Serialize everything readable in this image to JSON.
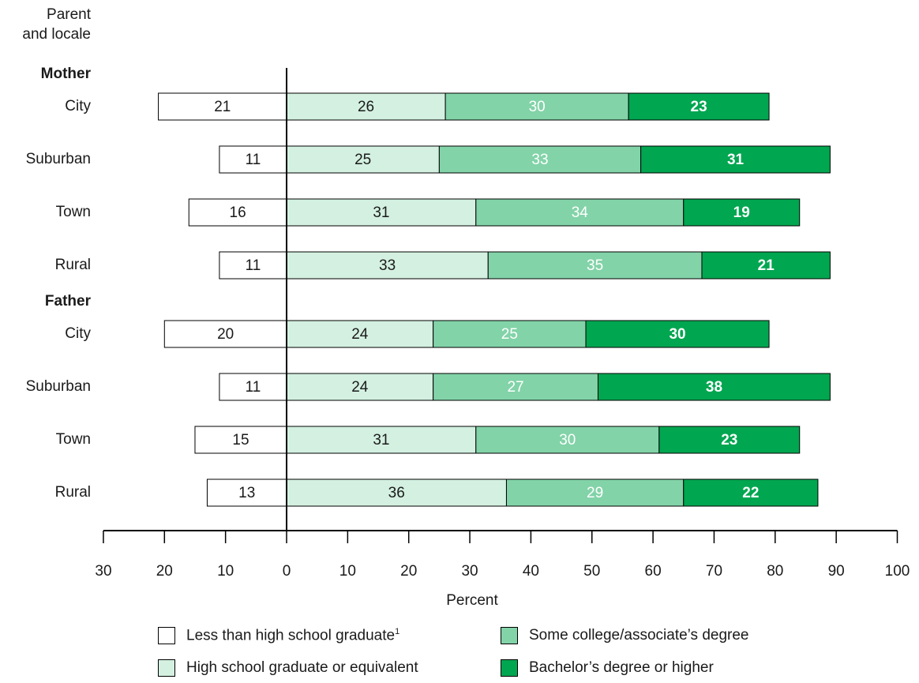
{
  "chart_data": {
    "type": "bar",
    "orientation": "horizontal-diverging",
    "y_axis_title_line1": "Parent",
    "y_axis_title_line2": "and locale",
    "xlabel": "Percent",
    "xlim": [
      -30,
      100
    ],
    "x_ticks": [
      -30,
      -20,
      -10,
      0,
      10,
      20,
      30,
      40,
      50,
      60,
      70,
      80,
      90,
      100
    ],
    "x_tick_labels": [
      "30",
      "20",
      "10",
      "0",
      "10",
      "20",
      "30",
      "40",
      "50",
      "60",
      "70",
      "80",
      "90",
      "100"
    ],
    "groups": [
      {
        "name": "Mother",
        "rows": [
          {
            "label": "City",
            "values": [
              21,
              26,
              30,
              23
            ]
          },
          {
            "label": "Suburban",
            "values": [
              11,
              25,
              33,
              31
            ]
          },
          {
            "label": "Town",
            "values": [
              16,
              31,
              34,
              19
            ]
          },
          {
            "label": "Rural",
            "values": [
              11,
              33,
              35,
              21
            ]
          }
        ]
      },
      {
        "name": "Father",
        "rows": [
          {
            "label": "City",
            "values": [
              20,
              24,
              25,
              30
            ]
          },
          {
            "label": "Suburban",
            "values": [
              11,
              24,
              27,
              38
            ]
          },
          {
            "label": "Town",
            "values": [
              15,
              31,
              30,
              23
            ]
          },
          {
            "label": "Rural",
            "values": [
              13,
              36,
              29,
              22
            ]
          }
        ]
      }
    ],
    "series": [
      {
        "name": "Less than high school graduate",
        "footnote": "1",
        "color": "#ffffff",
        "text_color": "#1a1a1a",
        "direction": "left"
      },
      {
        "name": "High school graduate or equivalent",
        "color": "#d3f0e1",
        "text_color": "#1a1a1a",
        "direction": "right"
      },
      {
        "name": "Some college/associate’s degree",
        "color": "#82d3a8",
        "text_color": "#ffffff",
        "direction": "right"
      },
      {
        "name": "Bachelor’s degree or higher",
        "color": "#00a650",
        "text_color": "#ffffff",
        "direction": "right"
      }
    ],
    "grid": false,
    "legend_position": "bottom"
  }
}
